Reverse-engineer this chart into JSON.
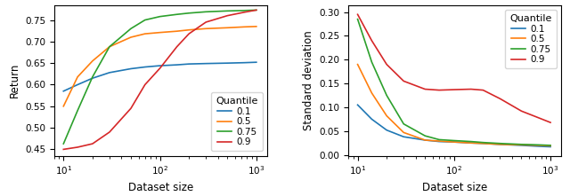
{
  "x_values": [
    10,
    14,
    20,
    30,
    50,
    70,
    100,
    150,
    200,
    300,
    500,
    750,
    1000
  ],
  "left": {
    "xlabel": "Dataset size",
    "ylabel": "Return",
    "ylim": [
      0.435,
      0.785
    ],
    "yticks": [
      0.45,
      0.5,
      0.55,
      0.6,
      0.65,
      0.7,
      0.75
    ],
    "series": {
      "0.1": [
        0.585,
        0.6,
        0.615,
        0.628,
        0.637,
        0.641,
        0.644,
        0.646,
        0.648,
        0.649,
        0.65,
        0.651,
        0.652
      ],
      "0.5": [
        0.55,
        0.618,
        0.655,
        0.688,
        0.71,
        0.718,
        0.721,
        0.724,
        0.727,
        0.73,
        0.732,
        0.734,
        0.735
      ],
      "0.75": [
        0.463,
        0.54,
        0.618,
        0.688,
        0.73,
        0.75,
        0.758,
        0.763,
        0.766,
        0.769,
        0.771,
        0.772,
        0.773
      ],
      "0.9": [
        0.45,
        0.455,
        0.463,
        0.49,
        0.545,
        0.6,
        0.638,
        0.688,
        0.718,
        0.745,
        0.76,
        0.768,
        0.773
      ]
    }
  },
  "right": {
    "xlabel": "Dataset size",
    "ylabel": "Standard deviation",
    "ylim": [
      -0.002,
      0.315
    ],
    "yticks": [
      0.0,
      0.05,
      0.1,
      0.15,
      0.2,
      0.25,
      0.3
    ],
    "series": {
      "0.1": [
        0.105,
        0.075,
        0.052,
        0.038,
        0.031,
        0.028,
        0.027,
        0.025,
        0.024,
        0.022,
        0.02,
        0.018,
        0.017
      ],
      "0.5": [
        0.19,
        0.13,
        0.082,
        0.047,
        0.031,
        0.029,
        0.027,
        0.025,
        0.024,
        0.022,
        0.021,
        0.02,
        0.019
      ],
      "0.75": [
        0.285,
        0.195,
        0.125,
        0.065,
        0.04,
        0.032,
        0.03,
        0.028,
        0.026,
        0.024,
        0.022,
        0.021,
        0.02
      ],
      "0.9": [
        0.295,
        0.24,
        0.19,
        0.155,
        0.138,
        0.136,
        0.137,
        0.138,
        0.136,
        0.118,
        0.092,
        0.078,
        0.068
      ]
    }
  },
  "colors": {
    "0.1": "#1f77b4",
    "0.5": "#ff7f0e",
    "0.75": "#2ca02c",
    "0.9": "#d62728"
  },
  "quantile_labels": [
    "0.1",
    "0.5",
    "0.75",
    "0.9"
  ],
  "legend_title": "Quantile"
}
